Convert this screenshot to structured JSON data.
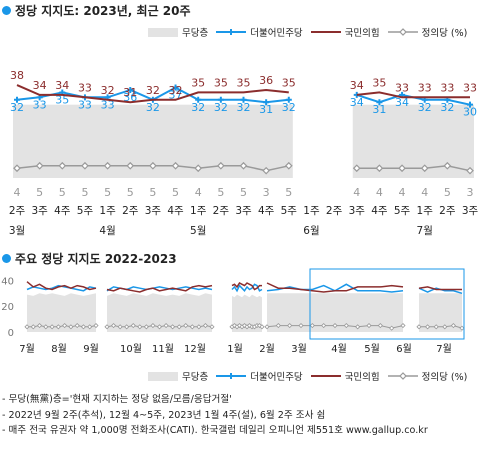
{
  "colors": {
    "nonpartisan": "#e3e3e3",
    "democratic": "#1a97e8",
    "ppp": "#8b2d2d",
    "justice": "#9a9a9a",
    "accent": "#1a97e8"
  },
  "chart_data": [
    {
      "type": "line",
      "title": "정당 지지도: 2023년, 최근 20주",
      "legend": [
        "무당층",
        "더불어민주당",
        "국민의힘",
        "정의당 (%)"
      ],
      "legend_position": "top-right",
      "x": [
        "2주",
        "3주",
        "4주",
        "5주",
        "1주",
        "2주",
        "3주",
        "4주",
        "1주",
        "2주",
        "3주",
        "4주",
        "5주",
        "1주",
        "2주",
        "3주",
        "4주",
        "5주",
        "1주",
        "2주",
        "3주"
      ],
      "month_labels": [
        {
          "at": "2주",
          "label": "3월"
        },
        {
          "at": "1주",
          "label": "4월",
          "index": 4
        },
        {
          "at": "1주",
          "label": "5월",
          "index": 8
        },
        {
          "at": "1주",
          "label": "6월",
          "index": 13
        },
        {
          "at": "1주",
          "label": "7월",
          "index": 18
        }
      ],
      "gap_after_index": [
        12,
        13,
        14
      ],
      "series": [
        {
          "name": "무당층",
          "type": "area",
          "values": [
            30,
            30,
            30,
            30,
            30,
            30,
            30,
            30,
            30,
            30,
            30,
            30,
            30,
            null,
            null,
            30,
            30,
            30,
            30,
            30,
            30
          ]
        },
        {
          "name": "더불어민주당",
          "values": [
            32,
            33,
            35,
            33,
            33,
            36,
            32,
            37,
            32,
            32,
            32,
            31,
            32,
            null,
            null,
            34,
            31,
            34,
            32,
            32,
            30
          ]
        },
        {
          "name": "국민의힘",
          "values": [
            38,
            34,
            34,
            33,
            32,
            31,
            32,
            32,
            35,
            35,
            35,
            36,
            35,
            null,
            null,
            34,
            35,
            33,
            33,
            33,
            33
          ]
        },
        {
          "name": "정의당",
          "values": [
            4,
            5,
            5,
            5,
            5,
            5,
            5,
            5,
            4,
            5,
            5,
            3,
            5,
            null,
            null,
            4,
            4,
            4,
            4,
            5,
            3
          ]
        }
      ],
      "ylim": [
        0,
        45
      ]
    },
    {
      "type": "line",
      "title": "주요 정당 지지도 2022-2023",
      "legend": [
        "무당층",
        "더불어민주당",
        "국민의힘",
        "정의당 (%)"
      ],
      "yticks": [
        0,
        20,
        40
      ],
      "xticks": [
        "7월",
        "8월",
        "9월",
        "10월",
        "11월",
        "12월",
        "1월",
        "2월",
        "3월",
        "4월",
        "5월",
        "6월",
        "7월"
      ],
      "segments": [
        {
          "from": "7월",
          "to": "9월",
          "democratic": [
            33,
            35,
            34,
            33,
            34,
            36,
            35,
            34,
            33,
            32,
            35,
            34
          ],
          "ppp": [
            39,
            35,
            37,
            34,
            33,
            35,
            36,
            34,
            36,
            35,
            33,
            34
          ],
          "justice": [
            4,
            4,
            5,
            4,
            4,
            4,
            5,
            4,
            5,
            4,
            4,
            5
          ],
          "nonpartisan": [
            29,
            28,
            30,
            29,
            30,
            29,
            28,
            30,
            29,
            28,
            29,
            30
          ]
        },
        {
          "from": "9월",
          "to": "12월",
          "democratic": [
            32,
            35,
            34,
            33,
            35,
            34,
            33,
            34,
            35,
            34,
            33,
            34,
            35,
            34,
            33,
            34,
            33
          ],
          "ppp": [
            33,
            32,
            34,
            33,
            32,
            31,
            33,
            34,
            32,
            33,
            34,
            33,
            32,
            35,
            36,
            35,
            36
          ],
          "justice": [
            4,
            5,
            4,
            4,
            5,
            4,
            4,
            5,
            4,
            5,
            4,
            4,
            5,
            4,
            4,
            5,
            4
          ],
          "nonpartisan": [
            28,
            30,
            29,
            28,
            30,
            29,
            28,
            30,
            29,
            28,
            29,
            28,
            30,
            29,
            28,
            30,
            29
          ]
        },
        {
          "from": "1월",
          "to": "3월",
          "democratic": [
            33,
            35,
            32,
            36,
            34,
            32,
            35,
            33,
            34,
            37,
            36,
            32,
            33
          ],
          "ppp": [
            36,
            37,
            35,
            38,
            37,
            36,
            38,
            37,
            36,
            33,
            34,
            36,
            36
          ],
          "justice": [
            4,
            5,
            4,
            5,
            4,
            5,
            4,
            5,
            4,
            4,
            5,
            5,
            4
          ],
          "nonpartisan": [
            28,
            27,
            29,
            28,
            27,
            29,
            28,
            27,
            29,
            28,
            27,
            28,
            27
          ]
        },
        {
          "from": "4월",
          "to": "6월",
          "democratic": [
            32,
            33,
            35,
            33,
            33,
            36,
            32,
            37,
            32,
            32,
            32,
            31,
            32
          ],
          "ppp": [
            38,
            34,
            34,
            33,
            32,
            31,
            32,
            32,
            35,
            35,
            35,
            36,
            35
          ],
          "justice": [
            4,
            5,
            5,
            5,
            5,
            5,
            5,
            5,
            4,
            5,
            5,
            3,
            5
          ],
          "nonpartisan": [
            30,
            30,
            30,
            30,
            30,
            30,
            30,
            30,
            30,
            30,
            30,
            30,
            30
          ]
        },
        {
          "from": "7월",
          "to": "7월",
          "democratic": [
            34,
            31,
            34,
            32,
            32,
            30
          ],
          "ppp": [
            34,
            35,
            33,
            33,
            33,
            33
          ],
          "justice": [
            4,
            4,
            4,
            4,
            5,
            3
          ],
          "nonpartisan": [
            30,
            30,
            30,
            30,
            30,
            30
          ]
        }
      ]
    }
  ],
  "notes": [
    "- 무당(無黨)층='현재 지지하는 정당 없음/모름/응답거절'",
    "- 2022년 9월 2주(추석), 12월 4~5주, 2023년 1월 4주(설), 6월 2주 조사 쉼",
    "- 매주 전국 유권자 약 1,000명 전화조사(CATI). 한국갤럽 데일리 오피니언 제551호 www.gallup.co.kr"
  ]
}
